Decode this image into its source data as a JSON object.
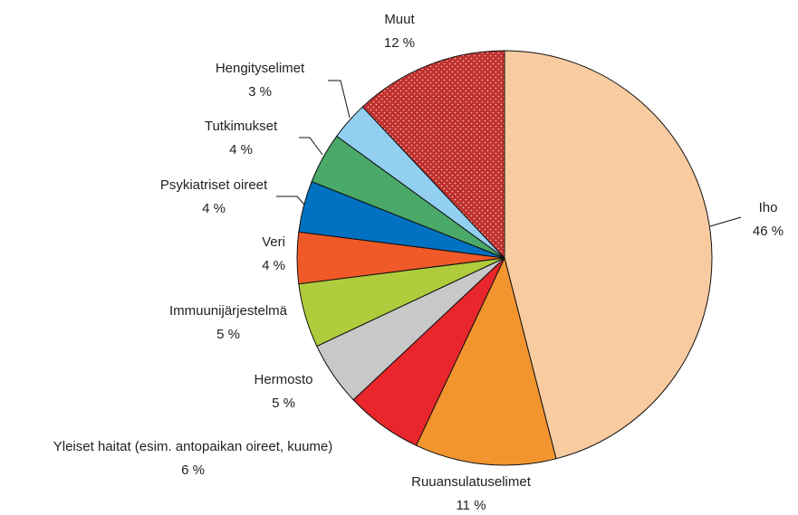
{
  "chart_data": {
    "type": "pie",
    "categories": [
      "Iho",
      "Ruuansulatuselimet",
      "Yleiset haitat (esim. antopaikan oireet, kuume)",
      "Hermosto",
      "Immuunijärjestelmä",
      "Veri",
      "Psykiatriset oireet",
      "Tutkimukset",
      "Hengityselimet",
      "Muut"
    ],
    "values": [
      46,
      11,
      6,
      5,
      5,
      4,
      4,
      4,
      3,
      12
    ],
    "value_labels": [
      "46 %",
      "11 %",
      "6 %",
      "5 %",
      "5 %",
      "4 %",
      "4 %",
      "4 %",
      "3 %",
      "12 %"
    ],
    "colors": [
      "#f8cba0",
      "#f3952f",
      "#e8262b",
      "#c8c8c8",
      "#afcc3c",
      "#f05a28",
      "#0072c1",
      "#4aa869",
      "#93cff0",
      "#c0302e"
    ],
    "patterns": [
      null,
      null,
      null,
      null,
      null,
      null,
      null,
      null,
      null,
      "dots"
    ]
  }
}
